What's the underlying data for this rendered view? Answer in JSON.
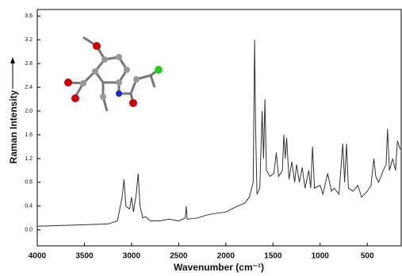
{
  "chart_data": {
    "type": "line",
    "y_label": "Raman Intensity",
    "x_label": "Wavenumber (cm⁻¹)",
    "x": [
      4000,
      3800,
      3600,
      3400,
      3250,
      3150,
      3100,
      3080,
      3060,
      3020,
      3000,
      2980,
      2950,
      2930,
      2910,
      2880,
      2850,
      2800,
      2700,
      2600,
      2500,
      2430,
      2420,
      2410,
      2300,
      2200,
      2100,
      2000,
      1900,
      1800,
      1750,
      1710,
      1695,
      1685,
      1670,
      1640,
      1615,
      1600,
      1585,
      1570,
      1530,
      1490,
      1465,
      1440,
      1400,
      1385,
      1370,
      1355,
      1330,
      1300,
      1270,
      1250,
      1220,
      1190,
      1160,
      1120,
      1100,
      1080,
      1060,
      1000,
      970,
      920,
      880,
      850,
      800,
      760,
      740,
      720,
      700,
      650,
      600,
      560,
      500,
      460,
      430,
      410,
      380,
      330,
      300,
      285,
      265,
      230,
      200,
      180,
      160,
      150
    ],
    "series": [
      {
        "color": "#333333",
        "values": [
          0.06,
          0.07,
          0.08,
          0.09,
          0.1,
          0.15,
          0.55,
          0.85,
          0.4,
          0.35,
          0.55,
          0.3,
          0.6,
          0.95,
          0.4,
          0.2,
          0.22,
          0.15,
          0.15,
          0.18,
          0.15,
          0.2,
          0.4,
          0.18,
          0.2,
          0.25,
          0.28,
          0.3,
          0.38,
          0.45,
          0.55,
          0.8,
          3.2,
          1.8,
          0.6,
          0.7,
          2.0,
          1.2,
          2.2,
          1.0,
          0.9,
          0.95,
          1.3,
          0.9,
          1.0,
          1.6,
          1.2,
          1.55,
          0.85,
          1.15,
          0.8,
          1.1,
          0.8,
          1.05,
          0.7,
          1.0,
          0.7,
          1.4,
          0.7,
          0.75,
          0.6,
          0.95,
          0.65,
          0.7,
          0.6,
          1.45,
          0.8,
          1.45,
          0.7,
          0.65,
          0.75,
          0.55,
          0.65,
          0.75,
          1.2,
          0.9,
          0.8,
          1.0,
          1.1,
          1.7,
          1.0,
          1.2,
          1.0,
          1.5,
          1.4,
          1.35
        ]
      }
    ],
    "xlim": [
      4000,
      140
    ],
    "ylim": [
      -0.27,
      3.71
    ],
    "xticks": [
      4000,
      3500,
      3000,
      2500,
      2000,
      1500,
      1000,
      500
    ],
    "yticks": [
      {
        "value": 0,
        "label": "0.0"
      },
      {
        "value": 0.4,
        "label": "0.4"
      },
      {
        "value": 0.8,
        "label": "0.8"
      },
      {
        "value": 1.2,
        "label": "1.2"
      },
      {
        "value": 1.6,
        "label": "1.6"
      },
      {
        "value": 2.0,
        "label": "2.0"
      },
      {
        "value": 2.4,
        "label": "2.4"
      },
      {
        "value": 2.8,
        "label": "2.8"
      },
      {
        "value": 3.2,
        "label": "3.2"
      },
      {
        "value": 3.6,
        "label": "3.6"
      }
    ]
  }
}
